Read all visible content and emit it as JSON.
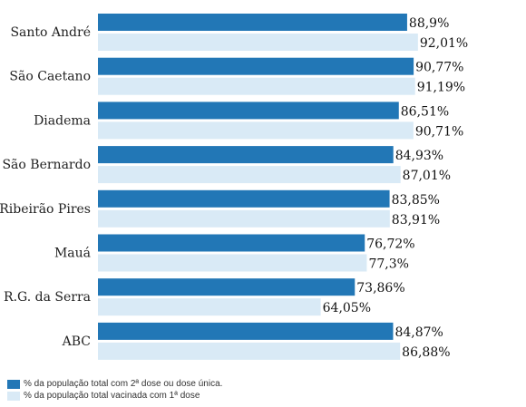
{
  "chart_data": {
    "type": "bar",
    "orientation": "horizontal",
    "categories": [
      "Santo André",
      "São Caetano",
      "Diadema",
      "São Bernardo",
      "Ribeirão Pires",
      "Mauá",
      "R.G. da Serra",
      "ABC"
    ],
    "series": [
      {
        "name": "% da população total com 2ª dose ou dose única.",
        "values": [
          88.9,
          90.77,
          86.51,
          84.93,
          83.85,
          76.72,
          73.86,
          84.87
        ],
        "labels": [
          "88,9%",
          "90,77%",
          "86,51%",
          "84,93%",
          "83,85%",
          "76,72%",
          "73,86%",
          "84,87%"
        ],
        "color": "#2277b6"
      },
      {
        "name": "% da população total vacinada com 1ª dose",
        "values": [
          92.01,
          91.19,
          90.71,
          87.01,
          83.91,
          77.3,
          64.05,
          86.88
        ],
        "labels": [
          "92,01%",
          "91,19%",
          "90,71%",
          "87,01%",
          "83,91%",
          "77,3%",
          "64,05%",
          "86,88%"
        ],
        "color": "#d9eaf6"
      }
    ],
    "xlim": [
      0,
      100
    ],
    "grid": false,
    "legend": "bottom-left"
  }
}
